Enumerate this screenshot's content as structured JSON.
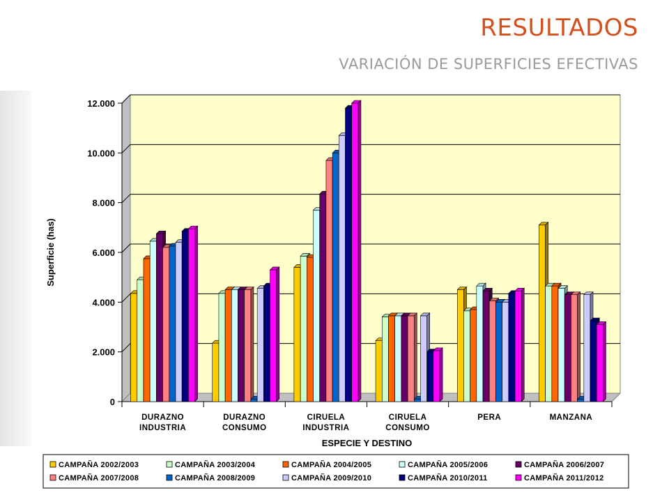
{
  "slide": {
    "title": "RESULTADOS",
    "subtitle": "VARIACIÓN DE SUPERFICIES EFECTIVAS"
  },
  "colors": {
    "title": "#d2511c",
    "subtitle": "#9a9a9a",
    "plot_background": "#ffffcc"
  },
  "chart_data": {
    "type": "bar",
    "style": "3d-clustered",
    "title": "",
    "xlabel": "ESPECIE Y DESTINO",
    "ylabel": "Superficie (has)",
    "ylim": [
      0,
      12000
    ],
    "yticks": [
      0,
      2000,
      4000,
      6000,
      8000,
      10000,
      12000
    ],
    "ytick_labels": [
      "0",
      "2.000",
      "4.000",
      "6.000",
      "8.000",
      "10.000",
      "12.000"
    ],
    "grid": true,
    "legend_position": "bottom",
    "categories": [
      [
        "DURAZNO",
        "INDUSTRIA"
      ],
      [
        "DURAZNO",
        "CONSUMO"
      ],
      [
        "CIRUELA",
        "INDUSTRIA"
      ],
      [
        "CIRUELA",
        "CONSUMO"
      ],
      [
        "PERA",
        ""
      ],
      [
        "MANZANA",
        ""
      ]
    ],
    "series": [
      {
        "name": "CAMPAÑA 2002/2003",
        "color": "#ffcc00",
        "values": [
          4350,
          2350,
          5400,
          2450,
          4500,
          7100
        ]
      },
      {
        "name": "CAMPAÑA 2003/2004",
        "color": "#ccffcc",
        "values": [
          4900,
          4350,
          5850,
          3400,
          3650,
          4650
        ]
      },
      {
        "name": "CAMPAÑA 2004/2005",
        "color": "#ff6600",
        "values": [
          5750,
          4500,
          5800,
          3450,
          3700,
          4650
        ]
      },
      {
        "name": "CAMPAÑA 2005/2006",
        "color": "#ccffff",
        "values": [
          6450,
          4500,
          7700,
          3450,
          4650,
          4550
        ]
      },
      {
        "name": "CAMPAÑA 2006/2007",
        "color": "#660066",
        "values": [
          6750,
          4500,
          8350,
          3450,
          4450,
          4300
        ]
      },
      {
        "name": "CAMPAÑA 2007/2008",
        "color": "#ff8080",
        "values": [
          6200,
          4500,
          9700,
          3450,
          4050,
          4300
        ]
      },
      {
        "name": "CAMPAÑA 2008/2009",
        "color": "#0066cc",
        "values": [
          6250,
          100,
          10000,
          100,
          4000,
          100
        ]
      },
      {
        "name": "CAMPAÑA 2009/2010",
        "color": "#ccccff",
        "values": [
          6400,
          4550,
          10700,
          3450,
          4000,
          4300
        ]
      },
      {
        "name": "CAMPAÑA 2010/2011",
        "color": "#000080",
        "values": [
          6850,
          4650,
          11800,
          2000,
          4350,
          3250
        ]
      },
      {
        "name": "CAMPAÑA 2011/2012",
        "color": "#ff00ff",
        "values": [
          6950,
          5300,
          12000,
          2050,
          4450,
          3100
        ]
      }
    ]
  }
}
